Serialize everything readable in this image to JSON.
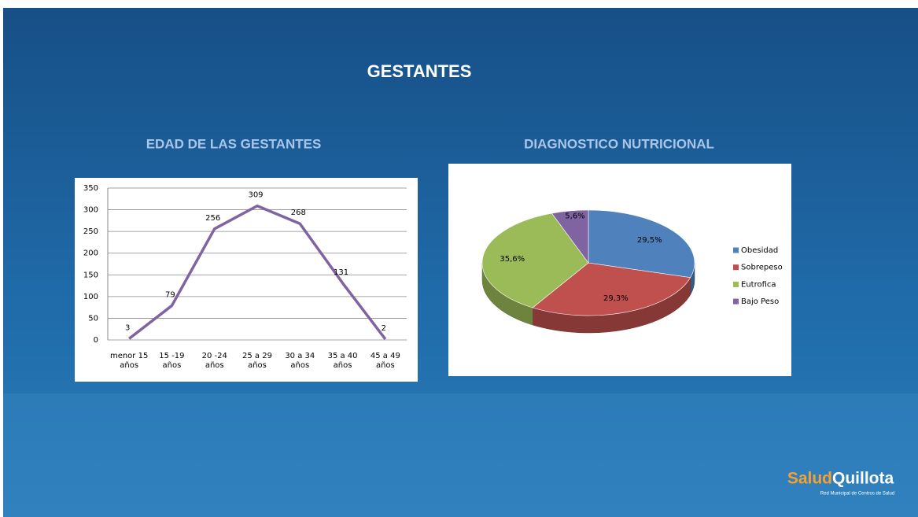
{
  "slide": {
    "title": "GESTANTES"
  },
  "brand": {
    "part1": "Salud",
    "part2": "Quillota",
    "tagline": "Red Municipal de Centros de Salud"
  },
  "chart_data": [
    {
      "type": "line",
      "title": "EDAD DE LAS GESTANTES",
      "categories": [
        "menor 15 años",
        "15 -19 años",
        "20 -24 años",
        "25 a 29 años",
        "30 a 34 años",
        "35 a 40 años",
        "45 a 49 años"
      ],
      "values": [
        3,
        79,
        256,
        309,
        268,
        131,
        2
      ],
      "color": "#8064a2",
      "ylim": [
        0,
        350
      ],
      "yticks": [
        0,
        50,
        100,
        150,
        200,
        250,
        300,
        350
      ],
      "grid": true
    },
    {
      "type": "pie",
      "title": "DIAGNOSTICO NUTRICIONAL",
      "categories": [
        "Obesidad",
        "Sobrepeso",
        "Eutrofica",
        "Bajo Peso"
      ],
      "values": [
        29.5,
        29.3,
        35.6,
        5.6
      ],
      "value_labels": [
        "29,5%",
        "29,3%",
        "35,6%",
        "5,6%"
      ],
      "colors": [
        "#4f81bd",
        "#c0504d",
        "#9bbb59",
        "#8064a2"
      ],
      "legend": "right"
    }
  ]
}
